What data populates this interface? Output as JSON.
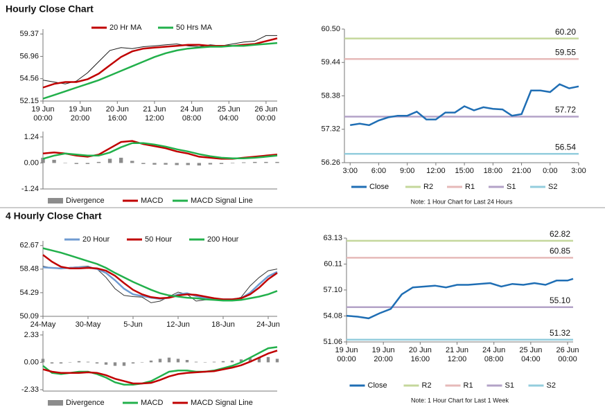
{
  "section_titles": [
    "Hourly Close Chart",
    "4 Hourly Close Chart"
  ],
  "chart_data": [
    {
      "type": "line",
      "legend": "top",
      "x": [
        0,
        6,
        12,
        18,
        24,
        30,
        36,
        42,
        48,
        54,
        60,
        66,
        72,
        78,
        84,
        90,
        96,
        102,
        108,
        114,
        120,
        126
      ],
      "xlim": [
        0,
        126
      ],
      "xticks": [
        {
          "value": 0,
          "label": "19 Jun 00:00"
        },
        {
          "value": 20,
          "label": "19 Jun 20:00"
        },
        {
          "value": 40,
          "label": "20 Jun 16:00"
        },
        {
          "value": 60,
          "label": "21 Jun 12:00"
        },
        {
          "value": 80,
          "label": "24 Jun 08:00"
        },
        {
          "value": 100,
          "label": "25 Jun 04:00"
        },
        {
          "value": 120,
          "label": "26 Jun 00:00"
        }
      ],
      "ylim": [
        52.15,
        59.9
      ],
      "yticks": [
        52.15,
        54.56,
        56.96,
        59.37
      ],
      "series": [
        {
          "color": "#1a1a1a",
          "values": [
            54.4,
            54.2,
            54.0,
            54.3,
            55.2,
            56.4,
            57.6,
            57.9,
            57.8,
            58.0,
            58.1,
            58.2,
            58.3,
            58.1,
            58.0,
            58.2,
            58.1,
            58.3,
            58.5,
            58.6,
            59.2,
            59.2
          ]
        },
        {
          "name": "20 Hr MA",
          "color": "#c00000",
          "values": [
            53.6,
            54.0,
            54.2,
            54.2,
            54.5,
            55.1,
            56.0,
            56.9,
            57.5,
            57.8,
            57.9,
            58.0,
            58.1,
            58.2,
            58.2,
            58.1,
            58.1,
            58.1,
            58.2,
            58.3,
            58.6,
            58.9
          ]
        },
        {
          "name": "50 Hrs MA",
          "color": "#22b04b",
          "values": [
            52.4,
            52.8,
            53.2,
            53.6,
            54.0,
            54.4,
            54.9,
            55.4,
            55.9,
            56.4,
            56.9,
            57.3,
            57.6,
            57.8,
            57.9,
            58.0,
            58.0,
            58.1,
            58.1,
            58.2,
            58.3,
            58.4
          ]
        }
      ]
    },
    {
      "type": "combo",
      "legend": "bottom",
      "x": [
        0,
        6,
        12,
        18,
        24,
        30,
        36,
        42,
        48,
        54,
        60,
        66,
        72,
        78,
        84,
        90,
        96,
        102,
        108,
        114,
        120,
        126
      ],
      "xlim": [
        0,
        126
      ],
      "ylim": [
        -1.24,
        1.5
      ],
      "yticks": [
        -1.24,
        {
          "value": 0,
          "label": "0.00"
        },
        1.24
      ],
      "series": [
        {
          "name": "Divergence",
          "kind": "bar",
          "color": "#8c8c8c",
          "values": [
            0.25,
            0.15,
            0,
            -0.05,
            -0.05,
            0.05,
            0.2,
            0.25,
            0.1,
            -0.05,
            -0.08,
            -0.08,
            -0.1,
            -0.1,
            -0.12,
            -0.07,
            -0.05,
            -0.02,
            0.03,
            0.05,
            0.05,
            0.05
          ]
        },
        {
          "name": "MACD",
          "kind": "line",
          "color": "#c00000",
          "values": [
            0.45,
            0.5,
            0.45,
            0.35,
            0.3,
            0.4,
            0.7,
            1.0,
            1.05,
            0.9,
            0.8,
            0.7,
            0.55,
            0.45,
            0.3,
            0.25,
            0.2,
            0.2,
            0.25,
            0.3,
            0.35,
            0.4
          ]
        },
        {
          "name": "MACD Signal Line",
          "kind": "line",
          "color": "#22b04b",
          "values": [
            0.2,
            0.35,
            0.45,
            0.4,
            0.35,
            0.35,
            0.5,
            0.75,
            0.95,
            0.95,
            0.88,
            0.78,
            0.65,
            0.55,
            0.42,
            0.32,
            0.25,
            0.22,
            0.22,
            0.25,
            0.3,
            0.35
          ]
        }
      ]
    },
    {
      "type": "line",
      "legend": "bottom",
      "note": "Note: 1 Hour Chart for Last 24 Hours",
      "x": [
        0,
        1,
        2,
        3,
        4,
        5,
        6,
        7,
        8,
        9,
        10,
        11,
        12,
        13,
        14,
        15,
        16,
        17,
        18,
        19,
        20,
        21,
        22,
        23,
        24
      ],
      "xlim": [
        -0.6,
        24
      ],
      "xticks": [
        {
          "value": 0,
          "label": "3:00"
        },
        {
          "value": 3,
          "label": "6:00"
        },
        {
          "value": 6,
          "label": "9:00"
        },
        {
          "value": 9,
          "label": "12:00"
        },
        {
          "value": 12,
          "label": "15:00"
        },
        {
          "value": 15,
          "label": "18:00"
        },
        {
          "value": 18,
          "label": "21:00"
        },
        {
          "value": 21,
          "label": "0:00"
        },
        {
          "value": 24,
          "label": "3:00"
        }
      ],
      "ylim": [
        56.26,
        60.5
      ],
      "yticks": [
        56.26,
        57.32,
        58.38,
        59.44,
        {
          "value": 60.5,
          "label": "60.50"
        }
      ],
      "series": [
        {
          "name": "Close",
          "color": "#1f6eb4",
          "values": [
            57.45,
            57.5,
            57.45,
            57.6,
            57.7,
            57.75,
            57.75,
            57.88,
            57.63,
            57.63,
            57.85,
            57.85,
            58.05,
            57.92,
            58.02,
            57.97,
            57.95,
            57.75,
            57.8,
            58.55,
            58.55,
            58.5,
            58.75,
            58.62,
            58.68
          ]
        }
      ],
      "levels": [
        {
          "name": "R2",
          "color": "#c4d79b",
          "value": 60.2,
          "value_label": "60.20"
        },
        {
          "name": "R1",
          "color": "#e6b9b8",
          "value": 59.55,
          "value_label": "59.55"
        },
        {
          "name": "S1",
          "color": "#b3a2c7",
          "value": 57.72,
          "value_label": "57.72"
        },
        {
          "name": "S2",
          "color": "#93cddd",
          "value": 56.54,
          "value_label": "56.54"
        }
      ]
    },
    {
      "type": "line",
      "legend": "top",
      "x": [
        0,
        6,
        12,
        18,
        24,
        30,
        36,
        42,
        48,
        54,
        60,
        66,
        72,
        78,
        84,
        90,
        96,
        102,
        108,
        114,
        120,
        126,
        132,
        138,
        144,
        150,
        156
      ],
      "xlim": [
        0,
        156
      ],
      "xticks": [
        {
          "value": 0,
          "label": "24-May"
        },
        {
          "value": 30,
          "label": "30-May"
        },
        {
          "value": 60,
          "label": "5-Jun"
        },
        {
          "value": 90,
          "label": "12-Jun"
        },
        {
          "value": 120,
          "label": "18-Jun"
        },
        {
          "value": 150,
          "label": "24-Jun"
        }
      ],
      "ylim": [
        50.09,
        63.5
      ],
      "yticks": [
        50.09,
        54.29,
        58.48,
        62.67
      ],
      "series": [
        {
          "color": "#333333",
          "values": [
            59.0,
            58.7,
            58.5,
            58.8,
            58.9,
            59.0,
            58.5,
            57.0,
            55.0,
            53.8,
            53.6,
            53.5,
            52.5,
            52.8,
            53.6,
            54.4,
            54.0,
            52.8,
            53.0,
            53.2,
            53.0,
            53.0,
            53.5,
            55.5,
            57.0,
            58.2,
            58.5
          ]
        },
        {
          "name": "20 Hour",
          "color": "#6f9bd1",
          "values": [
            58.8,
            58.7,
            58.6,
            58.7,
            58.8,
            58.8,
            58.5,
            57.8,
            56.5,
            55.0,
            54.0,
            53.7,
            53.4,
            53.2,
            53.4,
            54.0,
            54.2,
            53.7,
            53.3,
            53.2,
            53.1,
            53.1,
            53.3,
            54.3,
            55.8,
            57.2,
            58.0
          ]
        },
        {
          "name": "50 Hour",
          "color": "#c00000",
          "values": [
            61.0,
            59.8,
            58.9,
            58.6,
            58.6,
            58.7,
            58.6,
            58.2,
            57.3,
            56.0,
            54.8,
            54.0,
            53.5,
            53.3,
            53.4,
            53.8,
            54.0,
            53.9,
            53.6,
            53.3,
            53.1,
            53.1,
            53.3,
            54.0,
            55.2,
            56.7,
            57.8
          ]
        },
        {
          "name": "200 Hour",
          "color": "#22b04b",
          "values": [
            62.2,
            61.8,
            61.4,
            60.9,
            60.4,
            59.9,
            59.4,
            58.7,
            57.8,
            57.0,
            56.2,
            55.5,
            54.8,
            54.2,
            53.8,
            53.6,
            53.4,
            53.3,
            53.1,
            53.0,
            52.9,
            52.9,
            53.0,
            53.3,
            53.6,
            54.0,
            54.6
          ]
        }
      ]
    },
    {
      "type": "combo",
      "legend": "bottom",
      "x": [
        0,
        6,
        12,
        18,
        24,
        30,
        36,
        42,
        48,
        54,
        60,
        66,
        72,
        78,
        84,
        90,
        96,
        102,
        108,
        114,
        120,
        126,
        132,
        138,
        144,
        150,
        156
      ],
      "xlim": [
        0,
        156
      ],
      "ylim": [
        -2.45,
        2.68
      ],
      "yticks": [
        -2.33,
        {
          "value": 0,
          "label": "0.00"
        },
        2.33
      ],
      "series": [
        {
          "name": "Divergence",
          "kind": "bar",
          "color": "#8c8c8c",
          "values": [
            0.3,
            -0.1,
            -0.1,
            0,
            0.1,
            0.05,
            -0.1,
            -0.2,
            -0.3,
            -0.3,
            -0.1,
            0,
            0.15,
            0.3,
            0.4,
            0.3,
            0.2,
            0.05,
            0,
            0.05,
            0.1,
            0.15,
            0.25,
            0.35,
            0.4,
            0.45,
            0.3
          ]
        },
        {
          "name": "MACD",
          "kind": "line",
          "color": "#22b04b",
          "values": [
            -0.3,
            -0.9,
            -1.0,
            -0.9,
            -0.8,
            -0.8,
            -1.0,
            -1.3,
            -1.7,
            -1.9,
            -1.9,
            -1.8,
            -1.6,
            -1.2,
            -0.8,
            -0.7,
            -0.7,
            -0.8,
            -0.8,
            -0.7,
            -0.5,
            -0.3,
            0.0,
            0.4,
            0.8,
            1.2,
            1.3
          ]
        },
        {
          "name": "MACD Signal Line",
          "kind": "line",
          "color": "#c00000",
          "values": [
            -0.6,
            -0.8,
            -0.9,
            -0.9,
            -0.9,
            -0.85,
            -0.9,
            -1.1,
            -1.4,
            -1.6,
            -1.8,
            -1.8,
            -1.75,
            -1.5,
            -1.2,
            -1.0,
            -0.9,
            -0.85,
            -0.8,
            -0.75,
            -0.6,
            -0.45,
            -0.25,
            0.05,
            0.4,
            0.75,
            1.0
          ]
        }
      ]
    },
    {
      "type": "line",
      "legend": "bottom",
      "note": "Note: 1 Hour Chart for Last 1 Week",
      "x": [
        0,
        6,
        12,
        18,
        24,
        30,
        36,
        42,
        48,
        54,
        60,
        66,
        72,
        78,
        84,
        90,
        96,
        102,
        108,
        114,
        120,
        123
      ],
      "xlim": [
        0,
        123
      ],
      "xticks": [
        {
          "value": 0,
          "label": "19 Jun 00:00"
        },
        {
          "value": 20,
          "label": "19 Jun 20:00"
        },
        {
          "value": 40,
          "label": "20 Jun 16:00"
        },
        {
          "value": 60,
          "label": "21 Jun 12:00"
        },
        {
          "value": 80,
          "label": "24 Jun 08:00"
        },
        {
          "value": 100,
          "label": "25 Jun 04:00"
        },
        {
          "value": 120,
          "label": "26 Jun 00:00"
        }
      ],
      "ylim": [
        51.06,
        63.13
      ],
      "yticks": [
        51.06,
        54.08,
        {
          "value": 57.1,
          "label": "57.10"
        },
        60.11,
        63.13
      ],
      "series": [
        {
          "name": "Close",
          "color": "#1f6eb4",
          "values": [
            54.1,
            54.0,
            53.8,
            54.4,
            54.9,
            56.6,
            57.4,
            57.5,
            57.6,
            57.4,
            57.7,
            57.7,
            57.8,
            57.9,
            57.5,
            57.8,
            57.7,
            57.9,
            57.7,
            58.2,
            58.2,
            58.4
          ]
        }
      ],
      "levels": [
        {
          "name": "R2",
          "color": "#c4d79b",
          "value": 62.82,
          "value_label": "62.82"
        },
        {
          "name": "R1",
          "color": "#e6b9b8",
          "value": 60.85,
          "value_label": "60.85"
        },
        {
          "name": "S1",
          "color": "#b3a2c7",
          "value": 55.1,
          "value_label": "55.10"
        },
        {
          "name": "S2",
          "color": "#93cddd",
          "value": 51.32,
          "value_label": "51.32"
        }
      ]
    }
  ]
}
